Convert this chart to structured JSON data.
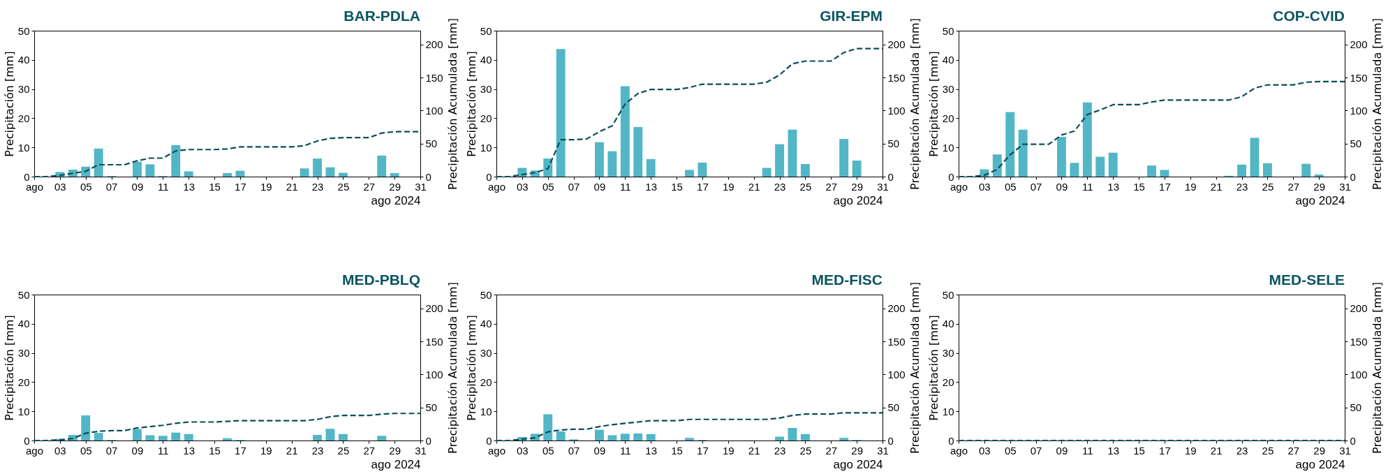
{
  "chart_data": [
    {
      "type": "bar",
      "title": "BAR-PDLA",
      "xlabel": "ago 2024",
      "ylabel": "Precipitación [mm]",
      "y2label": "Precipitación Acumulada [mm]",
      "xlim": [
        "2024-08-01",
        "2024-08-31"
      ],
      "xticks": [
        {
          "value": "2024-08-01",
          "label": "ago"
        },
        {
          "value": "2024-08-03",
          "label": "03"
        },
        {
          "value": "2024-08-05",
          "label": "05"
        },
        {
          "value": "2024-08-07",
          "label": "07"
        },
        {
          "value": "2024-08-09",
          "label": "09"
        },
        {
          "value": "2024-08-11",
          "label": "11"
        },
        {
          "value": "2024-08-13",
          "label": "13"
        },
        {
          "value": "2024-08-15",
          "label": "15"
        },
        {
          "value": "2024-08-17",
          "label": "17"
        },
        {
          "value": "2024-08-19",
          "label": "19"
        },
        {
          "value": "2024-08-21",
          "label": "21"
        },
        {
          "value": "2024-08-23",
          "label": "23"
        },
        {
          "value": "2024-08-25",
          "label": "25"
        },
        {
          "value": "2024-08-27",
          "label": "27"
        },
        {
          "value": "2024-08-29",
          "label": "29"
        },
        {
          "value": "2024-08-31",
          "label": "31"
        }
      ],
      "ylim": [
        0,
        50
      ],
      "yticks": [
        0,
        10,
        20,
        30,
        40,
        50
      ],
      "y2lim": [
        0,
        221
      ],
      "y2ticks": [
        0,
        50,
        100,
        150,
        200
      ],
      "line_style": "dashed",
      "x": [
        "2024-08-01",
        "2024-08-02",
        "2024-08-03",
        "2024-08-04",
        "2024-08-05",
        "2024-08-06",
        "2024-08-07",
        "2024-08-08",
        "2024-08-09",
        "2024-08-10",
        "2024-08-11",
        "2024-08-12",
        "2024-08-13",
        "2024-08-14",
        "2024-08-15",
        "2024-08-16",
        "2024-08-17",
        "2024-08-18",
        "2024-08-19",
        "2024-08-20",
        "2024-08-21",
        "2024-08-22",
        "2024-08-23",
        "2024-08-24",
        "2024-08-25",
        "2024-08-26",
        "2024-08-27",
        "2024-08-28",
        "2024-08-29",
        "2024-08-30",
        "2024-08-31"
      ],
      "series": [
        {
          "color": "#52b6c6",
          "values": [
            null,
            null,
            1.6,
            2.4,
            3.4,
            9.6,
            0.2,
            null,
            5.1,
            4.2,
            0.2,
            10.8,
            1.8,
            null,
            null,
            1.2,
            2.0,
            null,
            null,
            null,
            null,
            2.8,
            6.2,
            3.2,
            1.3,
            null,
            null,
            7.2,
            1.2,
            null,
            null
          ]
        },
        {
          "type": "line",
          "axis": "y2",
          "color": "#0b4d57",
          "values": [
            0,
            0,
            2,
            5,
            8,
            18,
            18,
            18,
            24,
            28,
            28,
            39,
            41,
            41,
            41,
            42,
            45,
            45,
            45,
            45,
            45,
            47,
            54,
            58,
            59,
            59,
            59,
            66,
            68,
            68,
            68
          ]
        }
      ]
    },
    {
      "type": "bar",
      "title": "GIR-EPM",
      "xlabel": "ago 2024",
      "ylabel": "Precipitación [mm]",
      "y2label": "Precipitación Acumulada [mm]",
      "xlim": [
        "2024-08-01",
        "2024-08-31"
      ],
      "xticks": [
        {
          "value": "2024-08-01",
          "label": "ago"
        },
        {
          "value": "2024-08-03",
          "label": "03"
        },
        {
          "value": "2024-08-05",
          "label": "05"
        },
        {
          "value": "2024-08-07",
          "label": "07"
        },
        {
          "value": "2024-08-09",
          "label": "09"
        },
        {
          "value": "2024-08-11",
          "label": "11"
        },
        {
          "value": "2024-08-13",
          "label": "13"
        },
        {
          "value": "2024-08-15",
          "label": "15"
        },
        {
          "value": "2024-08-17",
          "label": "17"
        },
        {
          "value": "2024-08-19",
          "label": "19"
        },
        {
          "value": "2024-08-21",
          "label": "21"
        },
        {
          "value": "2024-08-23",
          "label": "23"
        },
        {
          "value": "2024-08-25",
          "label": "25"
        },
        {
          "value": "2024-08-27",
          "label": "27"
        },
        {
          "value": "2024-08-29",
          "label": "29"
        },
        {
          "value": "2024-08-31",
          "label": "31"
        }
      ],
      "ylim": [
        0,
        50
      ],
      "yticks": [
        0,
        10,
        20,
        30,
        40,
        50
      ],
      "y2lim": [
        0,
        221
      ],
      "y2ticks": [
        0,
        50,
        100,
        150,
        200
      ],
      "line_style": "dashed",
      "x": [
        "2024-08-01",
        "2024-08-02",
        "2024-08-03",
        "2024-08-04",
        "2024-08-05",
        "2024-08-06",
        "2024-08-07",
        "2024-08-08",
        "2024-08-09",
        "2024-08-10",
        "2024-08-11",
        "2024-08-12",
        "2024-08-13",
        "2024-08-14",
        "2024-08-15",
        "2024-08-16",
        "2024-08-17",
        "2024-08-18",
        "2024-08-19",
        "2024-08-20",
        "2024-08-21",
        "2024-08-22",
        "2024-08-23",
        "2024-08-24",
        "2024-08-25",
        "2024-08-26",
        "2024-08-27",
        "2024-08-28",
        "2024-08-29",
        "2024-08-30",
        "2024-08-31"
      ],
      "series": [
        {
          "color": "#52b6c6",
          "values": [
            null,
            null,
            3.0,
            2.1,
            6.2,
            43.7,
            null,
            null,
            11.8,
            8.7,
            31.0,
            17.0,
            6.0,
            null,
            null,
            2.3,
            4.8,
            null,
            null,
            null,
            null,
            3.0,
            11.1,
            16.1,
            4.3,
            null,
            null,
            12.9,
            5.5,
            null,
            null
          ]
        },
        {
          "type": "line",
          "axis": "y2",
          "color": "#0b4d57",
          "values": [
            0,
            0,
            3,
            6,
            12,
            56,
            56,
            57,
            68,
            77,
            110,
            126,
            132,
            132,
            132,
            135,
            140,
            140,
            140,
            140,
            140,
            143,
            154,
            171,
            175,
            175,
            175,
            188,
            194,
            194,
            194
          ]
        }
      ]
    },
    {
      "type": "bar",
      "title": "COP-CVID",
      "xlabel": "ago 2024",
      "ylabel": "Precipitación [mm]",
      "y2label": "Precipitación Acumulada [mm]",
      "xlim": [
        "2024-08-01",
        "2024-08-31"
      ],
      "xticks": [
        {
          "value": "2024-08-01",
          "label": "ago"
        },
        {
          "value": "2024-08-03",
          "label": "03"
        },
        {
          "value": "2024-08-05",
          "label": "05"
        },
        {
          "value": "2024-08-07",
          "label": "07"
        },
        {
          "value": "2024-08-09",
          "label": "09"
        },
        {
          "value": "2024-08-11",
          "label": "11"
        },
        {
          "value": "2024-08-13",
          "label": "13"
        },
        {
          "value": "2024-08-15",
          "label": "15"
        },
        {
          "value": "2024-08-17",
          "label": "17"
        },
        {
          "value": "2024-08-19",
          "label": "19"
        },
        {
          "value": "2024-08-21",
          "label": "21"
        },
        {
          "value": "2024-08-23",
          "label": "23"
        },
        {
          "value": "2024-08-25",
          "label": "25"
        },
        {
          "value": "2024-08-27",
          "label": "27"
        },
        {
          "value": "2024-08-29",
          "label": "29"
        },
        {
          "value": "2024-08-31",
          "label": "31"
        }
      ],
      "ylim": [
        0,
        50
      ],
      "yticks": [
        0,
        10,
        20,
        30,
        40,
        50
      ],
      "y2lim": [
        0,
        221
      ],
      "y2ticks": [
        0,
        50,
        100,
        150,
        200
      ],
      "line_style": "dashed",
      "x": [
        "2024-08-01",
        "2024-08-02",
        "2024-08-03",
        "2024-08-04",
        "2024-08-05",
        "2024-08-06",
        "2024-08-07",
        "2024-08-08",
        "2024-08-09",
        "2024-08-10",
        "2024-08-11",
        "2024-08-12",
        "2024-08-13",
        "2024-08-14",
        "2024-08-15",
        "2024-08-16",
        "2024-08-17",
        "2024-08-18",
        "2024-08-19",
        "2024-08-20",
        "2024-08-21",
        "2024-08-22",
        "2024-08-23",
        "2024-08-24",
        "2024-08-25",
        "2024-08-26",
        "2024-08-27",
        "2024-08-28",
        "2024-08-29",
        "2024-08-30",
        "2024-08-31"
      ],
      "series": [
        {
          "color": "#52b6c6",
          "values": [
            null,
            null,
            2.5,
            7.6,
            22.1,
            16.1,
            null,
            null,
            13.6,
            4.7,
            25.4,
            6.8,
            8.2,
            null,
            null,
            3.8,
            2.3,
            null,
            null,
            null,
            null,
            0.3,
            4.1,
            13.3,
            4.6,
            null,
            null,
            4.4,
            0.7,
            null,
            null
          ]
        },
        {
          "type": "line",
          "axis": "y2",
          "color": "#0b4d57",
          "values": [
            0,
            0,
            2,
            11,
            33,
            49,
            49,
            49,
            63,
            69,
            94,
            101,
            109,
            109,
            109,
            113,
            116,
            116,
            116,
            116,
            116,
            116,
            121,
            134,
            139,
            139,
            139,
            143,
            144,
            144,
            144
          ]
        }
      ]
    },
    {
      "type": "bar",
      "title": "MED-PBLQ",
      "xlabel": "ago 2024",
      "ylabel": "Precipitación [mm]",
      "y2label": "Precipitación Acumulada [mm]",
      "xlim": [
        "2024-08-01",
        "2024-08-31"
      ],
      "xticks": [
        {
          "value": "2024-08-01",
          "label": "ago"
        },
        {
          "value": "2024-08-03",
          "label": "03"
        },
        {
          "value": "2024-08-05",
          "label": "05"
        },
        {
          "value": "2024-08-07",
          "label": "07"
        },
        {
          "value": "2024-08-09",
          "label": "09"
        },
        {
          "value": "2024-08-11",
          "label": "11"
        },
        {
          "value": "2024-08-13",
          "label": "13"
        },
        {
          "value": "2024-08-15",
          "label": "15"
        },
        {
          "value": "2024-08-17",
          "label": "17"
        },
        {
          "value": "2024-08-19",
          "label": "19"
        },
        {
          "value": "2024-08-21",
          "label": "21"
        },
        {
          "value": "2024-08-23",
          "label": "23"
        },
        {
          "value": "2024-08-25",
          "label": "25"
        },
        {
          "value": "2024-08-27",
          "label": "27"
        },
        {
          "value": "2024-08-29",
          "label": "29"
        },
        {
          "value": "2024-08-31",
          "label": "31"
        }
      ],
      "ylim": [
        0,
        50
      ],
      "yticks": [
        0,
        10,
        20,
        30,
        40,
        50
      ],
      "y2lim": [
        0,
        221
      ],
      "y2ticks": [
        0,
        50,
        100,
        150,
        200
      ],
      "line_style": "dashed",
      "x": [
        "2024-08-01",
        "2024-08-02",
        "2024-08-03",
        "2024-08-04",
        "2024-08-05",
        "2024-08-06",
        "2024-08-07",
        "2024-08-08",
        "2024-08-09",
        "2024-08-10",
        "2024-08-11",
        "2024-08-12",
        "2024-08-13",
        "2024-08-14",
        "2024-08-15",
        "2024-08-16",
        "2024-08-17",
        "2024-08-18",
        "2024-08-19",
        "2024-08-20",
        "2024-08-21",
        "2024-08-22",
        "2024-08-23",
        "2024-08-24",
        "2024-08-25",
        "2024-08-26",
        "2024-08-27",
        "2024-08-28",
        "2024-08-29",
        "2024-08-30",
        "2024-08-31"
      ],
      "series": [
        {
          "color": "#52b6c6",
          "values": [
            null,
            null,
            0.6,
            1.9,
            8.6,
            2.6,
            0.2,
            null,
            3.9,
            1.8,
            1.6,
            2.7,
            2.2,
            null,
            null,
            0.8,
            0.2,
            null,
            null,
            null,
            null,
            null,
            1.9,
            4.0,
            2.2,
            null,
            null,
            1.6,
            null,
            null,
            null
          ]
        },
        {
          "type": "line",
          "axis": "y2",
          "color": "#0b4d57",
          "values": [
            0,
            0,
            1,
            3,
            11,
            14,
            15,
            15,
            19,
            21,
            23,
            26,
            28,
            28,
            28,
            29,
            30,
            30,
            30,
            30,
            30,
            30,
            32,
            36,
            38,
            38,
            38,
            40,
            41,
            41,
            41
          ]
        }
      ]
    },
    {
      "type": "bar",
      "title": "MED-FISC",
      "xlabel": "ago 2024",
      "ylabel": "Precipitación [mm]",
      "y2label": "Precipitación Acumulada [mm]",
      "xlim": [
        "2024-08-01",
        "2024-08-31"
      ],
      "xticks": [
        {
          "value": "2024-08-01",
          "label": "ago"
        },
        {
          "value": "2024-08-03",
          "label": "03"
        },
        {
          "value": "2024-08-05",
          "label": "05"
        },
        {
          "value": "2024-08-07",
          "label": "07"
        },
        {
          "value": "2024-08-09",
          "label": "09"
        },
        {
          "value": "2024-08-11",
          "label": "11"
        },
        {
          "value": "2024-08-13",
          "label": "13"
        },
        {
          "value": "2024-08-15",
          "label": "15"
        },
        {
          "value": "2024-08-17",
          "label": "17"
        },
        {
          "value": "2024-08-19",
          "label": "19"
        },
        {
          "value": "2024-08-21",
          "label": "21"
        },
        {
          "value": "2024-08-23",
          "label": "23"
        },
        {
          "value": "2024-08-25",
          "label": "25"
        },
        {
          "value": "2024-08-27",
          "label": "27"
        },
        {
          "value": "2024-08-29",
          "label": "29"
        },
        {
          "value": "2024-08-31",
          "label": "31"
        }
      ],
      "ylim": [
        0,
        50
      ],
      "yticks": [
        0,
        10,
        20,
        30,
        40,
        50
      ],
      "y2lim": [
        0,
        221
      ],
      "y2ticks": [
        0,
        50,
        100,
        150,
        200
      ],
      "line_style": "dashed",
      "x": [
        "2024-08-01",
        "2024-08-02",
        "2024-08-03",
        "2024-08-04",
        "2024-08-05",
        "2024-08-06",
        "2024-08-07",
        "2024-08-08",
        "2024-08-09",
        "2024-08-10",
        "2024-08-11",
        "2024-08-12",
        "2024-08-13",
        "2024-08-14",
        "2024-08-15",
        "2024-08-16",
        "2024-08-17",
        "2024-08-18",
        "2024-08-19",
        "2024-08-20",
        "2024-08-21",
        "2024-08-22",
        "2024-08-23",
        "2024-08-24",
        "2024-08-25",
        "2024-08-26",
        "2024-08-27",
        "2024-08-28",
        "2024-08-29",
        "2024-08-30",
        "2024-08-31"
      ],
      "series": [
        {
          "color": "#52b6c6",
          "values": [
            null,
            null,
            1.2,
            2.3,
            9.0,
            3.1,
            0.4,
            null,
            3.7,
            1.8,
            2.3,
            2.4,
            2.2,
            null,
            null,
            0.9,
            0.2,
            null,
            null,
            null,
            null,
            null,
            1.3,
            4.3,
            2.2,
            null,
            null,
            0.9,
            0.2,
            null,
            null
          ]
        },
        {
          "type": "line",
          "axis": "y2",
          "color": "#0b4d57",
          "values": [
            0,
            0,
            2,
            4,
            13,
            16,
            17,
            17,
            21,
            24,
            26,
            28,
            30,
            30,
            30,
            32,
            32,
            32,
            32,
            32,
            32,
            32,
            34,
            38,
            40,
            40,
            40,
            42,
            42,
            42,
            42
          ]
        }
      ]
    },
    {
      "type": "line",
      "title": "MED-SELE",
      "xlabel": "ago 2024",
      "ylabel": "Precipitación [mm]",
      "y2label": "Precipitación Acumulada [mm]",
      "xlim": [
        "2024-08-01",
        "2024-08-31"
      ],
      "xticks": [
        {
          "value": "2024-08-01",
          "label": "ago"
        },
        {
          "value": "2024-08-03",
          "label": "03"
        },
        {
          "value": "2024-08-05",
          "label": "05"
        },
        {
          "value": "2024-08-07",
          "label": "07"
        },
        {
          "value": "2024-08-09",
          "label": "09"
        },
        {
          "value": "2024-08-11",
          "label": "11"
        },
        {
          "value": "2024-08-13",
          "label": "13"
        },
        {
          "value": "2024-08-15",
          "label": "15"
        },
        {
          "value": "2024-08-17",
          "label": "17"
        },
        {
          "value": "2024-08-19",
          "label": "19"
        },
        {
          "value": "2024-08-21",
          "label": "21"
        },
        {
          "value": "2024-08-23",
          "label": "23"
        },
        {
          "value": "2024-08-25",
          "label": "25"
        },
        {
          "value": "2024-08-27",
          "label": "27"
        },
        {
          "value": "2024-08-29",
          "label": "29"
        },
        {
          "value": "2024-08-31",
          "label": "31"
        }
      ],
      "ylim": [
        0,
        50
      ],
      "yticks": [
        0,
        10,
        20,
        30,
        40,
        50
      ],
      "y2lim": [
        0,
        221
      ],
      "y2ticks": [
        0,
        50,
        100,
        150,
        200
      ],
      "line_style": "dashed",
      "x": [
        "2024-08-01",
        "2024-08-02",
        "2024-08-03",
        "2024-08-04",
        "2024-08-05",
        "2024-08-06",
        "2024-08-07",
        "2024-08-08",
        "2024-08-09",
        "2024-08-10",
        "2024-08-11",
        "2024-08-12",
        "2024-08-13",
        "2024-08-14",
        "2024-08-15",
        "2024-08-16",
        "2024-08-17",
        "2024-08-18",
        "2024-08-19",
        "2024-08-20",
        "2024-08-21",
        "2024-08-22",
        "2024-08-23",
        "2024-08-24",
        "2024-08-25",
        "2024-08-26",
        "2024-08-27",
        "2024-08-28",
        "2024-08-29",
        "2024-08-30",
        "2024-08-31"
      ],
      "series": [
        {
          "axis": "y2",
          "color": "#0b4d57",
          "values": [
            0,
            0,
            0,
            0,
            0,
            0,
            0,
            0,
            0,
            0,
            0,
            0,
            0,
            0,
            0,
            0,
            0,
            0,
            0,
            0,
            0,
            0,
            0,
            0,
            0,
            0,
            0,
            0,
            0,
            0,
            0
          ]
        }
      ]
    }
  ]
}
